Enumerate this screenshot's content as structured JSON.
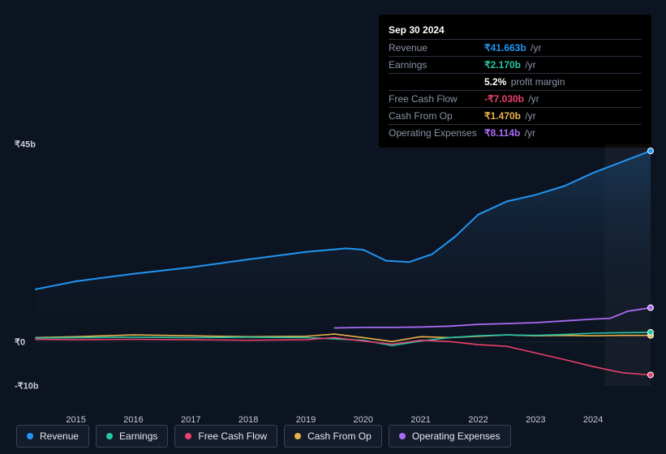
{
  "tooltip": {
    "title": "Sep 30 2024",
    "rows": [
      {
        "label": "Revenue",
        "value": "₹41.663b",
        "suffix": "/yr",
        "color": "#2196f3"
      },
      {
        "label": "Earnings",
        "value": "₹2.170b",
        "suffix": "/yr",
        "color": "#26c6a6"
      },
      {
        "label": "",
        "value": "5.2%",
        "suffix": "profit margin",
        "color": "#ffffff",
        "is_margin": true
      },
      {
        "label": "Free Cash Flow",
        "value": "-₹7.030b",
        "suffix": "/yr",
        "color": "#e8416c"
      },
      {
        "label": "Cash From Op",
        "value": "₹1.470b",
        "suffix": "/yr",
        "color": "#eab14a"
      },
      {
        "label": "Operating Expenses",
        "value": "₹8.114b",
        "suffix": "/yr",
        "color": "#a96bf5"
      }
    ]
  },
  "chart": {
    "type": "line-area",
    "background_color": "#0d1421",
    "grid_color": "#1a2332",
    "text_color": "#c8cdd6",
    "ylim": [
      -10,
      45
    ],
    "ylabels": [
      {
        "v": 45,
        "text": "₹45b"
      },
      {
        "v": 0,
        "text": "₹0"
      },
      {
        "v": -10,
        "text": "-₹10b"
      }
    ],
    "xlabels": [
      "2015",
      "2016",
      "2017",
      "2018",
      "2019",
      "2020",
      "2021",
      "2022",
      "2023",
      "2024"
    ],
    "x_start": 2014.3,
    "x_end": 2025.0,
    "x_today": 2024.2,
    "series": {
      "revenue": {
        "color": "#2196f3",
        "width": 2,
        "area": true,
        "area_from": "#1a3a5a",
        "area_to": "#0d1421",
        "pts": [
          [
            2014.3,
            12.0
          ],
          [
            2015,
            13.8
          ],
          [
            2016,
            15.5
          ],
          [
            2017,
            17.0
          ],
          [
            2018,
            18.8
          ],
          [
            2019,
            20.5
          ],
          [
            2019.7,
            21.3
          ],
          [
            2020.0,
            21.0
          ],
          [
            2020.4,
            18.5
          ],
          [
            2020.8,
            18.2
          ],
          [
            2021.2,
            20.0
          ],
          [
            2021.6,
            24.0
          ],
          [
            2022.0,
            29.0
          ],
          [
            2022.5,
            32.0
          ],
          [
            2023.0,
            33.5
          ],
          [
            2023.5,
            35.5
          ],
          [
            2024.0,
            38.5
          ],
          [
            2024.5,
            41.0
          ],
          [
            2025.0,
            43.5
          ]
        ]
      },
      "earnings": {
        "color": "#26c6a6",
        "width": 1.6,
        "pts": [
          [
            2014.3,
            0.9
          ],
          [
            2015,
            1.0
          ],
          [
            2016,
            1.1
          ],
          [
            2017,
            1.0
          ],
          [
            2018,
            1.1
          ],
          [
            2019,
            1.0
          ],
          [
            2020,
            0.4
          ],
          [
            2020.5,
            -0.8
          ],
          [
            2021,
            0.2
          ],
          [
            2021.5,
            1.0
          ],
          [
            2022,
            1.4
          ],
          [
            2022.5,
            1.6
          ],
          [
            2023,
            1.5
          ],
          [
            2023.5,
            1.7
          ],
          [
            2024,
            2.0
          ],
          [
            2024.5,
            2.1
          ],
          [
            2025.0,
            2.2
          ]
        ]
      },
      "fcf": {
        "color": "#e8416c",
        "width": 1.6,
        "pts": [
          [
            2014.3,
            0.6
          ],
          [
            2015,
            0.5
          ],
          [
            2016,
            0.6
          ],
          [
            2017,
            0.5
          ],
          [
            2018,
            0.4
          ],
          [
            2019,
            0.5
          ],
          [
            2019.5,
            1.0
          ],
          [
            2020,
            0.2
          ],
          [
            2020.5,
            -0.5
          ],
          [
            2021,
            0.4
          ],
          [
            2021.5,
            0.1
          ],
          [
            2022,
            -0.6
          ],
          [
            2022.5,
            -1.0
          ],
          [
            2023,
            -2.5
          ],
          [
            2023.5,
            -4.0
          ],
          [
            2024,
            -5.6
          ],
          [
            2024.5,
            -7.0
          ],
          [
            2025.0,
            -7.5
          ]
        ]
      },
      "cashop": {
        "color": "#eab14a",
        "width": 1.6,
        "pts": [
          [
            2014.3,
            1.0
          ],
          [
            2015,
            1.2
          ],
          [
            2016,
            1.6
          ],
          [
            2017,
            1.4
          ],
          [
            2018,
            1.2
          ],
          [
            2019,
            1.3
          ],
          [
            2019.5,
            1.8
          ],
          [
            2020,
            1.0
          ],
          [
            2020.5,
            0.1
          ],
          [
            2021,
            1.2
          ],
          [
            2021.5,
            1.0
          ],
          [
            2022,
            1.3
          ],
          [
            2022.5,
            1.6
          ],
          [
            2023,
            1.4
          ],
          [
            2023.5,
            1.5
          ],
          [
            2024,
            1.4
          ],
          [
            2024.5,
            1.5
          ],
          [
            2025.0,
            1.5
          ]
        ]
      },
      "opex": {
        "color": "#a96bf5",
        "width": 1.8,
        "pts": [
          [
            2019.5,
            3.2
          ],
          [
            2020,
            3.3
          ],
          [
            2020.5,
            3.3
          ],
          [
            2021,
            3.4
          ],
          [
            2021.5,
            3.6
          ],
          [
            2022,
            4.0
          ],
          [
            2022.5,
            4.2
          ],
          [
            2023,
            4.4
          ],
          [
            2023.5,
            4.8
          ],
          [
            2024,
            5.2
          ],
          [
            2024.3,
            5.4
          ],
          [
            2024.6,
            7.0
          ],
          [
            2025.0,
            7.8
          ]
        ]
      }
    },
    "endpoints": true
  },
  "legend": [
    {
      "label": "Revenue",
      "color": "#2196f3"
    },
    {
      "label": "Earnings",
      "color": "#26c6a6"
    },
    {
      "label": "Free Cash Flow",
      "color": "#e8416c"
    },
    {
      "label": "Cash From Op",
      "color": "#eab14a"
    },
    {
      "label": "Operating Expenses",
      "color": "#a96bf5"
    }
  ]
}
